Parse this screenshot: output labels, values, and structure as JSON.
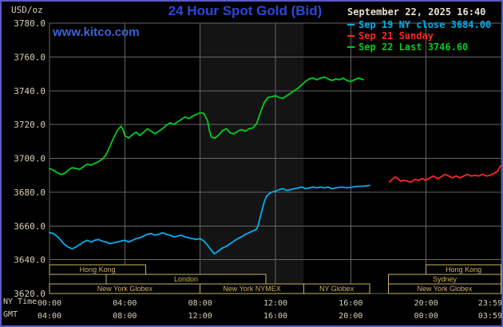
{
  "header": {
    "unit_label": "USD/oz",
    "title": "24 Hour Spot Gold (Bid)",
    "datetime": "September 22, 2025 16:40",
    "watermark": "www.kitco.com",
    "legend": [
      {
        "label": "Sep 19 NY close 3684.00",
        "color": "#00b0f0"
      },
      {
        "label": "Sep 21 Sunday",
        "color": "#ff2626"
      },
      {
        "label": "Sep 22 Last 3746.60",
        "color": "#00cc22"
      }
    ]
  },
  "axis": {
    "ny_label": "NY Time",
    "gmt_label": "GMT",
    "y_ticks": [
      "3780.0",
      "3760.0",
      "3740.0",
      "3720.0",
      "3700.0",
      "3680.0",
      "3660.0",
      "3640.0",
      "3620.0"
    ],
    "ny_ticks": [
      "00:00",
      "04:00",
      "08:00",
      "12:00",
      "16:00",
      "20:00",
      "23:59"
    ],
    "gmt_ticks": [
      "04:00",
      "08:00",
      "12:00",
      "16:00",
      "20:00",
      "00:00",
      "03:59"
    ]
  },
  "chart_data": {
    "type": "line",
    "title": "24 Hour Spot Gold (Bid)",
    "ylabel": "USD/oz",
    "x_unit": "hours (NY time)",
    "ylim": [
      3620,
      3780
    ],
    "xlim_hours": [
      0,
      24
    ],
    "y_gridlines": [
      3780,
      3760,
      3740,
      3720,
      3700,
      3680,
      3660,
      3640,
      3620
    ],
    "x_gridlines_hours": [
      0,
      4,
      8,
      12,
      16,
      20
    ],
    "x_tick_hours": [
      0,
      4,
      8,
      12,
      16,
      20,
      23.983
    ],
    "highlight_band_hours": [
      8.0,
      13.5
    ],
    "series": [
      {
        "id": "sep19",
        "name": "Sep 19 NY close",
        "close": 3684.0,
        "color": "#00b0f0",
        "points": [
          [
            0,
            3656
          ],
          [
            0.2,
            3655.5
          ],
          [
            0.4,
            3654
          ],
          [
            0.6,
            3651.5
          ],
          [
            0.8,
            3649
          ],
          [
            1.0,
            3647.5
          ],
          [
            1.2,
            3646.5
          ],
          [
            1.4,
            3647.5
          ],
          [
            1.6,
            3649
          ],
          [
            1.8,
            3650.5
          ],
          [
            2.0,
            3651.5
          ],
          [
            2.2,
            3650.5
          ],
          [
            2.4,
            3651.5
          ],
          [
            2.6,
            3652
          ],
          [
            2.8,
            3651
          ],
          [
            3.0,
            3650.5
          ],
          [
            3.2,
            3649.5
          ],
          [
            3.4,
            3650
          ],
          [
            3.6,
            3650.5
          ],
          [
            3.8,
            3651
          ],
          [
            4.0,
            3651.5
          ],
          [
            4.2,
            3650.5
          ],
          [
            4.4,
            3651.5
          ],
          [
            4.6,
            3652.5
          ],
          [
            4.8,
            3653
          ],
          [
            5.0,
            3654
          ],
          [
            5.2,
            3655
          ],
          [
            5.4,
            3655.5
          ],
          [
            5.6,
            3654.5
          ],
          [
            5.8,
            3655
          ],
          [
            6.0,
            3656
          ],
          [
            6.2,
            3655
          ],
          [
            6.4,
            3654.5
          ],
          [
            6.6,
            3653.5
          ],
          [
            6.8,
            3654
          ],
          [
            7.0,
            3654.5
          ],
          [
            7.2,
            3653.5
          ],
          [
            7.4,
            3653
          ],
          [
            7.6,
            3652.5
          ],
          [
            7.8,
            3652
          ],
          [
            8.0,
            3652.5
          ],
          [
            8.2,
            3651
          ],
          [
            8.4,
            3648.5
          ],
          [
            8.6,
            3645.5
          ],
          [
            8.75,
            3643.5
          ],
          [
            8.9,
            3644.5
          ],
          [
            9.0,
            3645.5
          ],
          [
            9.2,
            3647
          ],
          [
            9.4,
            3648
          ],
          [
            9.6,
            3649.5
          ],
          [
            9.8,
            3651
          ],
          [
            10.0,
            3652.5
          ],
          [
            10.2,
            3653.5
          ],
          [
            10.4,
            3655
          ],
          [
            10.6,
            3656
          ],
          [
            10.8,
            3657
          ],
          [
            11.0,
            3658
          ],
          [
            11.1,
            3661
          ],
          [
            11.2,
            3665.5
          ],
          [
            11.3,
            3670
          ],
          [
            11.4,
            3674
          ],
          [
            11.5,
            3677
          ],
          [
            11.6,
            3678.5
          ],
          [
            11.8,
            3680
          ],
          [
            12.0,
            3680.5
          ],
          [
            12.2,
            3681.5
          ],
          [
            12.4,
            3682
          ],
          [
            12.6,
            3681
          ],
          [
            12.8,
            3681.5
          ],
          [
            13.0,
            3682
          ],
          [
            13.2,
            3682.5
          ],
          [
            13.4,
            3683
          ],
          [
            13.6,
            3682
          ],
          [
            13.8,
            3682.5
          ],
          [
            14.0,
            3683
          ],
          [
            14.2,
            3682.5
          ],
          [
            14.4,
            3683
          ],
          [
            14.6,
            3682.5
          ],
          [
            14.8,
            3683
          ],
          [
            15.0,
            3682
          ],
          [
            15.2,
            3682.5
          ],
          [
            15.5,
            3683
          ],
          [
            15.8,
            3682.5
          ],
          [
            16.1,
            3683
          ],
          [
            16.4,
            3683.5
          ],
          [
            16.7,
            3683.5
          ],
          [
            17.0,
            3684
          ]
        ]
      },
      {
        "id": "sep21",
        "name": "Sep 21 Sunday",
        "color": "#ff2626",
        "points": [
          [
            18.05,
            3686
          ],
          [
            18.2,
            3687.5
          ],
          [
            18.35,
            3689
          ],
          [
            18.5,
            3688
          ],
          [
            18.65,
            3686.5
          ],
          [
            18.8,
            3687
          ],
          [
            19.0,
            3686.5
          ],
          [
            19.2,
            3686
          ],
          [
            19.4,
            3687.5
          ],
          [
            19.6,
            3687
          ],
          [
            19.8,
            3688
          ],
          [
            20.0,
            3687
          ],
          [
            20.2,
            3688.5
          ],
          [
            20.4,
            3689.5
          ],
          [
            20.6,
            3688
          ],
          [
            20.8,
            3689
          ],
          [
            21.0,
            3690.5
          ],
          [
            21.2,
            3689.5
          ],
          [
            21.4,
            3688.5
          ],
          [
            21.6,
            3689.5
          ],
          [
            21.8,
            3688.5
          ],
          [
            22.0,
            3689.5
          ],
          [
            22.2,
            3690.5
          ],
          [
            22.4,
            3689.5
          ],
          [
            22.6,
            3690
          ],
          [
            22.8,
            3689.5
          ],
          [
            23.0,
            3690.5
          ],
          [
            23.2,
            3689.5
          ],
          [
            23.4,
            3690
          ],
          [
            23.6,
            3691
          ],
          [
            23.8,
            3692.5
          ],
          [
            23.95,
            3695.5
          ]
        ]
      },
      {
        "id": "sep22",
        "name": "Sep 22 Last",
        "last": 3746.6,
        "color": "#00cc22",
        "points": [
          [
            0,
            3694
          ],
          [
            0.2,
            3693
          ],
          [
            0.4,
            3691.5
          ],
          [
            0.6,
            3690.5
          ],
          [
            0.8,
            3691
          ],
          [
            1.0,
            3693
          ],
          [
            1.2,
            3694.5
          ],
          [
            1.4,
            3694
          ],
          [
            1.6,
            3693.5
          ],
          [
            1.8,
            3695
          ],
          [
            2.0,
            3696.5
          ],
          [
            2.2,
            3696
          ],
          [
            2.4,
            3697
          ],
          [
            2.6,
            3698
          ],
          [
            2.8,
            3699.5
          ],
          [
            3.0,
            3702
          ],
          [
            3.2,
            3707
          ],
          [
            3.4,
            3712
          ],
          [
            3.6,
            3716.5
          ],
          [
            3.8,
            3719
          ],
          [
            3.9,
            3717
          ],
          [
            4.0,
            3713.5
          ],
          [
            4.2,
            3712
          ],
          [
            4.4,
            3714
          ],
          [
            4.6,
            3715.5
          ],
          [
            4.8,
            3713.5
          ],
          [
            5.0,
            3715.5
          ],
          [
            5.2,
            3717.5
          ],
          [
            5.4,
            3716
          ],
          [
            5.6,
            3714.5
          ],
          [
            5.8,
            3716
          ],
          [
            6.0,
            3717.5
          ],
          [
            6.2,
            3719.5
          ],
          [
            6.4,
            3721
          ],
          [
            6.6,
            3720
          ],
          [
            6.8,
            3721.5
          ],
          [
            7.0,
            3723
          ],
          [
            7.2,
            3724.5
          ],
          [
            7.4,
            3723.5
          ],
          [
            7.6,
            3725
          ],
          [
            7.8,
            3726
          ],
          [
            8.0,
            3727
          ],
          [
            8.2,
            3726.5
          ],
          [
            8.4,
            3722
          ],
          [
            8.5,
            3716
          ],
          [
            8.6,
            3712.5
          ],
          [
            8.8,
            3712
          ],
          [
            9.0,
            3714
          ],
          [
            9.2,
            3716.5
          ],
          [
            9.4,
            3717.5
          ],
          [
            9.6,
            3715
          ],
          [
            9.8,
            3714.5
          ],
          [
            10.0,
            3716
          ],
          [
            10.2,
            3717
          ],
          [
            10.4,
            3716
          ],
          [
            10.6,
            3717.5
          ],
          [
            10.8,
            3718
          ],
          [
            11.0,
            3720.5
          ],
          [
            11.2,
            3727
          ],
          [
            11.4,
            3733
          ],
          [
            11.6,
            3736
          ],
          [
            11.8,
            3736.5
          ],
          [
            12.0,
            3737
          ],
          [
            12.2,
            3736
          ],
          [
            12.4,
            3735.5
          ],
          [
            12.6,
            3737
          ],
          [
            12.8,
            3738.5
          ],
          [
            13.0,
            3740
          ],
          [
            13.2,
            3741.5
          ],
          [
            13.4,
            3743.5
          ],
          [
            13.6,
            3745.5
          ],
          [
            13.8,
            3747
          ],
          [
            14.0,
            3747.5
          ],
          [
            14.2,
            3746.5
          ],
          [
            14.4,
            3747.5
          ],
          [
            14.6,
            3748
          ],
          [
            14.8,
            3747
          ],
          [
            15.0,
            3746
          ],
          [
            15.2,
            3747
          ],
          [
            15.4,
            3746.5
          ],
          [
            15.6,
            3747.5
          ],
          [
            15.8,
            3746
          ],
          [
            16.0,
            3745.5
          ],
          [
            16.2,
            3746.5
          ],
          [
            16.4,
            3747.5
          ],
          [
            16.67,
            3746.6
          ]
        ]
      }
    ],
    "sessions": [
      {
        "boxes": [
          {
            "label": "Hong Kong",
            "start": 0,
            "end": 5.1
          },
          {
            "label": "Hong Kong",
            "start": 20.0,
            "end": 23.983
          }
        ]
      },
      {
        "boxes": [
          {
            "label": "London",
            "start": 3.0,
            "end": 11.5
          },
          {
            "label": "Sydney",
            "start": 18.0,
            "end": 23.983
          }
        ]
      },
      {
        "boxes": [
          {
            "label": "New York Globex",
            "start": 0,
            "end": 8.0
          },
          {
            "label": "New York NYMEX",
            "start": 8.0,
            "end": 13.5
          },
          {
            "label": "NY Globex",
            "start": 13.5,
            "end": 17.0
          },
          {
            "label": "New York Globex",
            "start": 18.0,
            "end": 23.983
          }
        ]
      }
    ]
  },
  "colors": {
    "background": "#000000",
    "border": "#5a5ac8",
    "grid": "#666666",
    "band": "#141414",
    "axis_text": "#d6d0b6",
    "session": "#c9b264",
    "title_blue": "#2c47dc",
    "kitco_blue": "#3c64d9",
    "date_text": "#e6e1cf"
  }
}
